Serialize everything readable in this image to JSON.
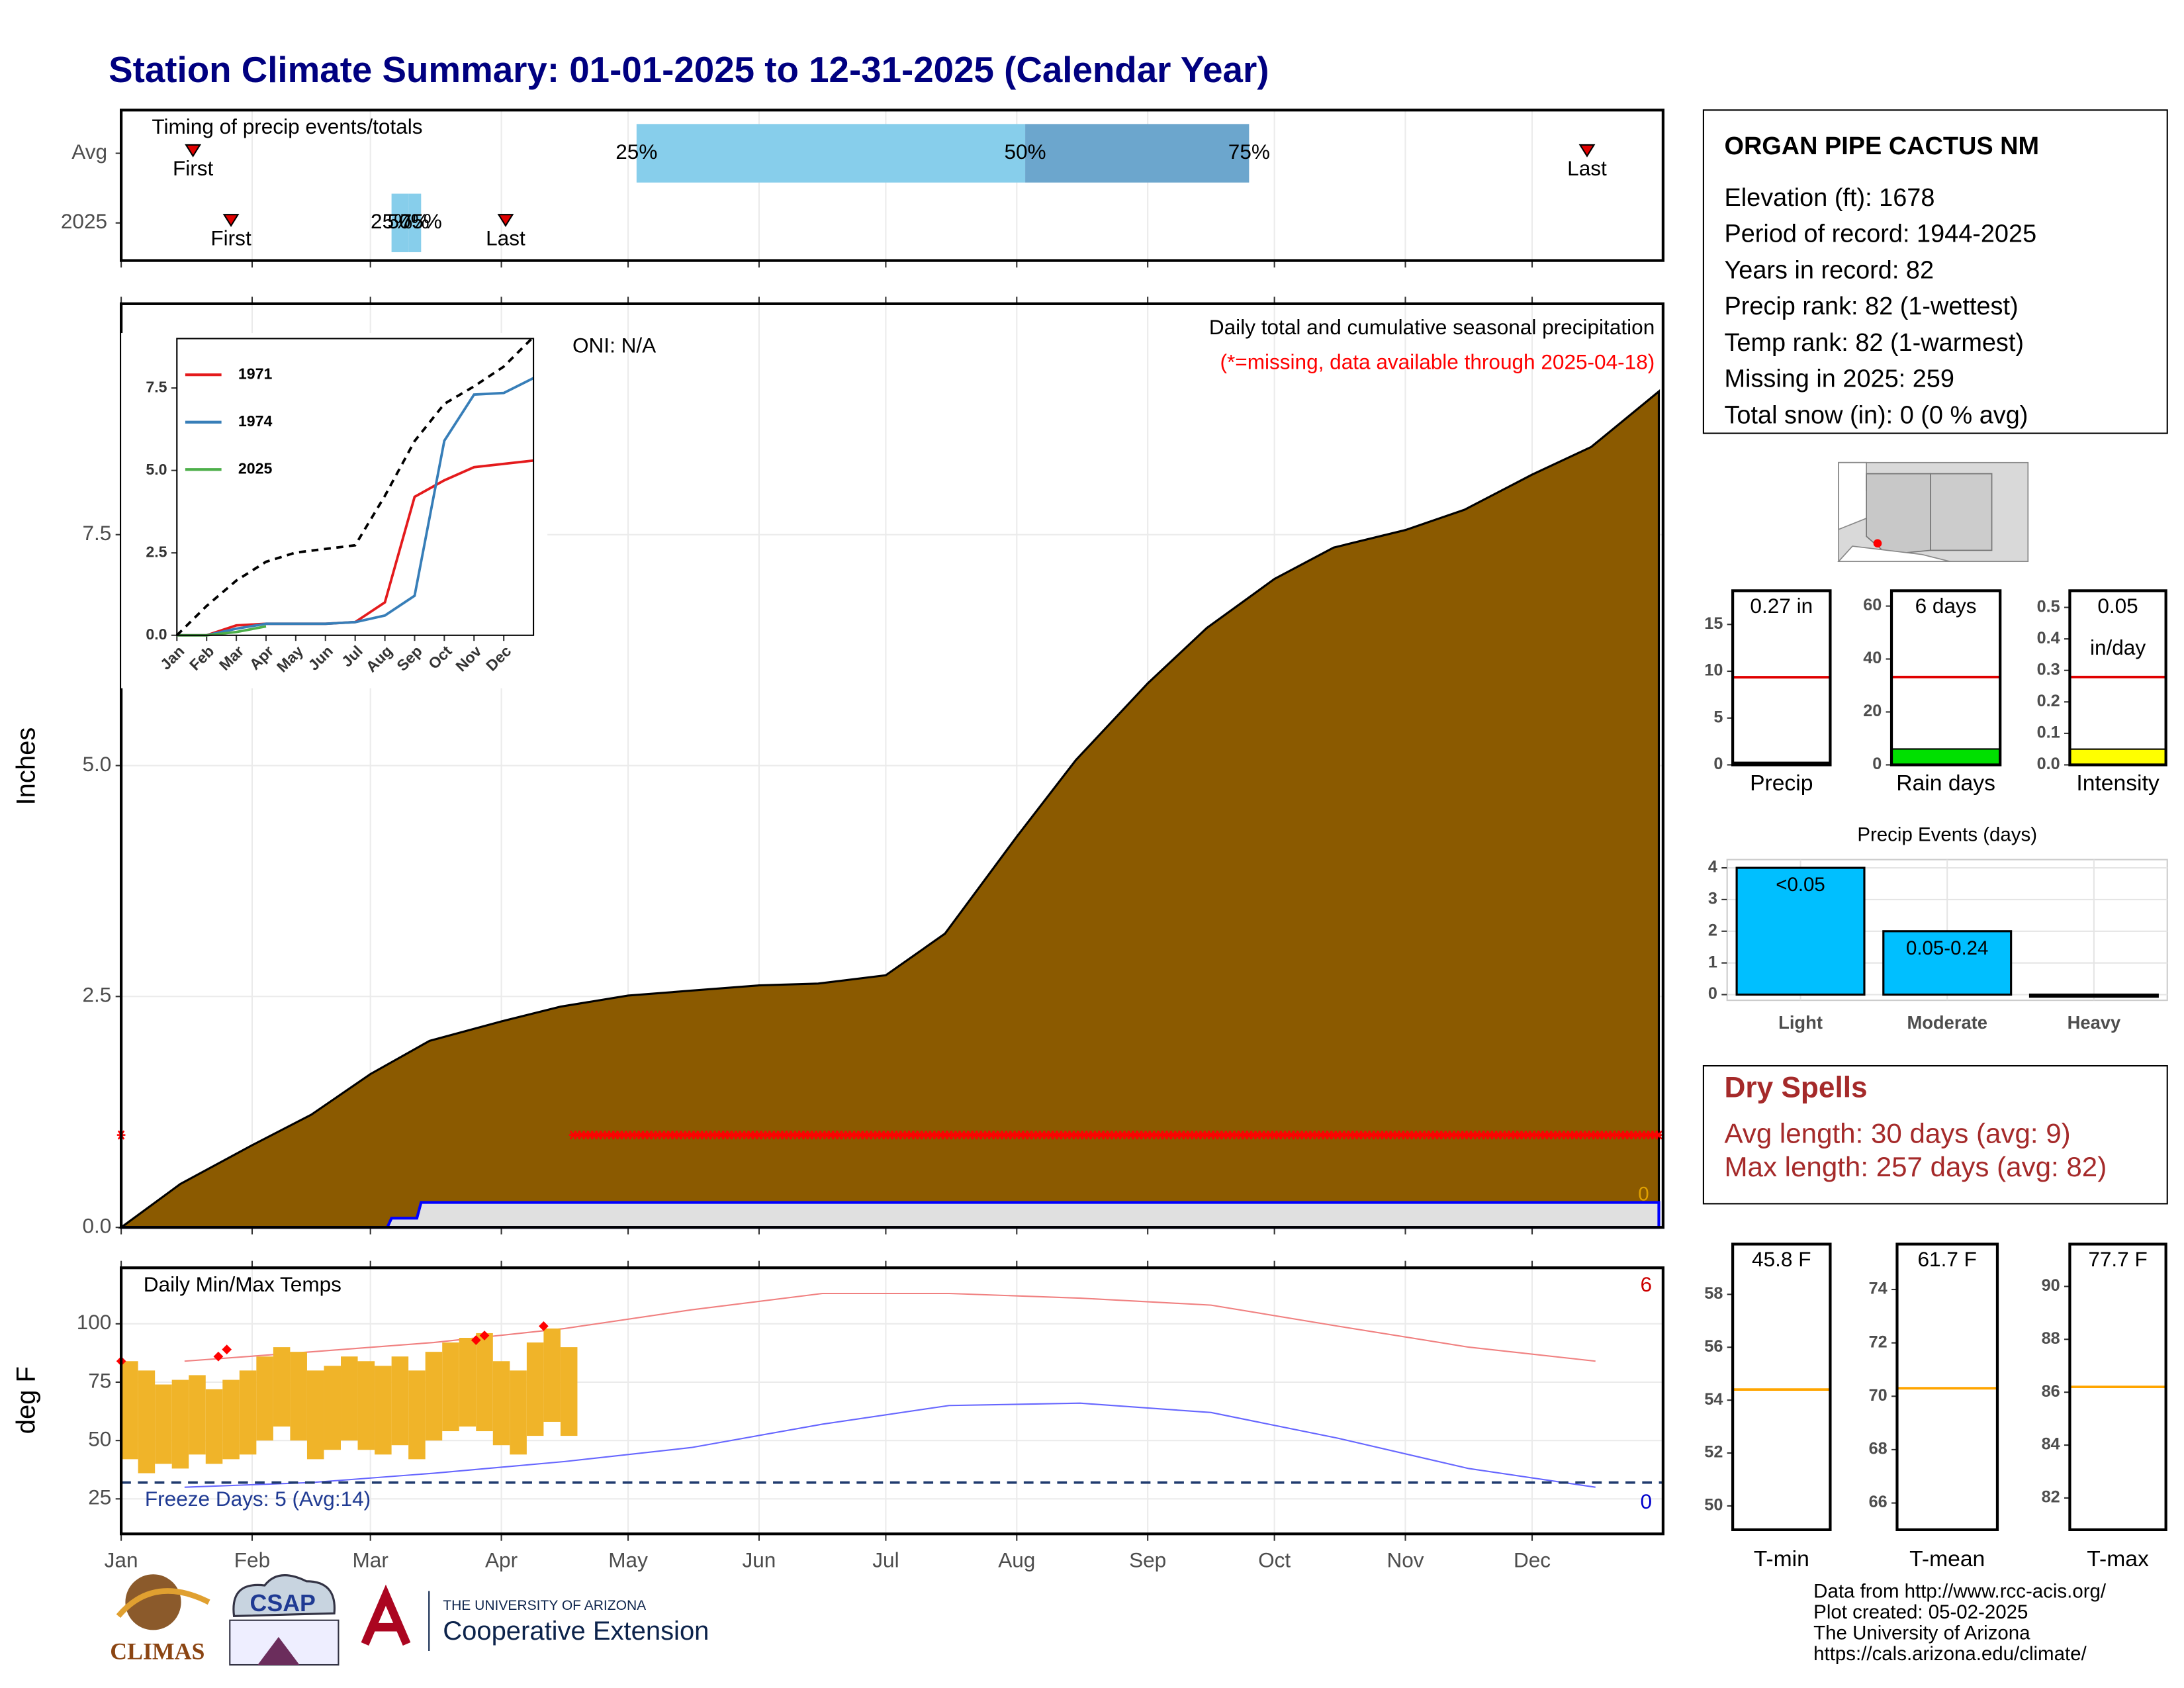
{
  "title": "Station Climate Summary: 01-01-2025 to 12-31-2025 (Calendar Year)",
  "chart_data": [
    {
      "type": "timing",
      "title": "Timing of precip events/totals",
      "categories": [
        "Avg",
        "2025"
      ],
      "xlim": [
        1,
        366
      ],
      "rows": [
        {
          "first": 18,
          "last": 348,
          "quantiles": [
            123,
            215,
            268
          ],
          "colors": [
            "#87ceeb",
            "#6ca6cd"
          ]
        },
        {
          "first": 27,
          "last": 92,
          "quantiles": [
            65,
            69,
            72
          ],
          "colors": [
            "#87ceeb",
            "#87ceeb"
          ]
        }
      ],
      "quantile_labels": [
        "25%",
        "50%",
        "75%"
      ],
      "first_label": "First",
      "last_label": "Last",
      "marker_color": "#e00000"
    },
    {
      "type": "area",
      "ylabel": "Inches",
      "subtitle": "Daily total and cumulative seasonal precipitation",
      "note": "(*=missing, data available through 2025-04-18)",
      "annotation": "ONI: N/A",
      "corner_label": "0",
      "xlim": [
        1,
        366
      ],
      "ylim": [
        0,
        10
      ],
      "yticks": [
        {
          "value": 0,
          "label": "0.0"
        },
        {
          "value": 2.5,
          "label": "2.5"
        },
        {
          "value": 5,
          "label": "5.0"
        },
        {
          "value": 7.5,
          "label": "7.5"
        }
      ],
      "grid": true,
      "series": [
        {
          "color": "#8b5a00",
          "x": [
            1,
            15,
            32,
            46,
            60,
            74,
            91,
            105,
            121,
            135,
            152,
            166,
            182,
            196,
            213,
            227,
            244,
            258,
            274,
            288,
            305,
            319,
            335,
            349,
            365
          ],
          "values": [
            0,
            0.47,
            0.89,
            1.22,
            1.66,
            2.02,
            2.23,
            2.39,
            2.51,
            2.56,
            2.62,
            2.64,
            2.73,
            3.18,
            4.23,
            5.06,
            5.89,
            6.49,
            7.02,
            7.36,
            7.55,
            7.77,
            8.15,
            8.45,
            9.05
          ]
        },
        {
          "color": "#0000ff",
          "fill": "#e0e0e0",
          "x": [
            1,
            64,
            65,
            71,
            72,
            365
          ],
          "values": [
            0,
            0,
            0.1,
            0.1,
            0.27,
            0.27
          ]
        }
      ],
      "missing_days": [
        [
          1,
          1
        ],
        [
          108,
          365
        ]
      ],
      "missing_y": 1,
      "missing_color": "#ff0000"
    },
    {
      "type": "line",
      "x": [
        1,
        2,
        3,
        4,
        5,
        6,
        7,
        8,
        9,
        10,
        11,
        12,
        13
      ],
      "xlim": [
        1,
        13
      ],
      "xticks": [
        {
          "value": 1,
          "label": "Jan"
        },
        {
          "value": 2,
          "label": "Feb"
        },
        {
          "value": 3,
          "label": "Mar"
        },
        {
          "value": 4,
          "label": "Apr"
        },
        {
          "value": 5,
          "label": "May"
        },
        {
          "value": 6,
          "label": "Jun"
        },
        {
          "value": 7,
          "label": "Jul"
        },
        {
          "value": 8,
          "label": "Aug"
        },
        {
          "value": 9,
          "label": "Sep"
        },
        {
          "value": 10,
          "label": "Oct"
        },
        {
          "value": 11,
          "label": "Nov"
        },
        {
          "value": 12,
          "label": "Dec"
        }
      ],
      "ylim": [
        0,
        9
      ],
      "yticks": [
        {
          "value": 0,
          "label": "0.0"
        },
        {
          "value": 2.5,
          "label": "2.5"
        },
        {
          "value": 5,
          "label": "5.0"
        },
        {
          "value": 7.5,
          "label": "7.5"
        }
      ],
      "series": [
        {
          "name": "1971",
          "color": "#e41a1c",
          "values": [
            0,
            0,
            0.3,
            0.35,
            0.35,
            0.35,
            0.4,
            1.0,
            4.2,
            4.7,
            5.1,
            5.2,
            5.3
          ]
        },
        {
          "name": "1974",
          "color": "#377eb8",
          "values": [
            0,
            0,
            0.2,
            0.35,
            0.35,
            0.35,
            0.4,
            0.6,
            1.2,
            5.9,
            7.3,
            7.35,
            7.8
          ]
        },
        {
          "name": "2025",
          "color": "#4daf4a",
          "values": [
            0,
            0,
            0.1,
            0.27,
            null,
            null,
            null,
            null,
            null,
            null,
            null,
            null,
            null
          ]
        },
        {
          "color": "#000000",
          "dash": true,
          "values": [
            0,
            0.89,
            1.66,
            2.23,
            2.51,
            2.62,
            2.73,
            4.23,
            5.89,
            7.02,
            7.55,
            8.15,
            9.05
          ]
        }
      ]
    },
    {
      "type": "temps",
      "title": "Daily Min/Max Temps",
      "ylabel": "deg F",
      "xlim": [
        1,
        366
      ],
      "xticks": [
        {
          "value": 1,
          "label": "Jan"
        },
        {
          "value": 32,
          "label": "Feb"
        },
        {
          "value": 60,
          "label": "Mar"
        },
        {
          "value": 91,
          "label": "Apr"
        },
        {
          "value": 121,
          "label": "May"
        },
        {
          "value": 152,
          "label": "Jun"
        },
        {
          "value": 182,
          "label": "Jul"
        },
        {
          "value": 213,
          "label": "Aug"
        },
        {
          "value": 244,
          "label": "Sep"
        },
        {
          "value": 274,
          "label": "Oct"
        },
        {
          "value": 305,
          "label": "Nov"
        },
        {
          "value": 335,
          "label": "Dec"
        }
      ],
      "ylim": [
        10,
        124
      ],
      "yticks": [
        25,
        50,
        75,
        100
      ],
      "grid": true,
      "avg_x": [
        16,
        46,
        75,
        106,
        136,
        167,
        197,
        228,
        259,
        289,
        320,
        350
      ],
      "avg_max": [
        84,
        88,
        92,
        98,
        106,
        113,
        113,
        111,
        108,
        99,
        90,
        84
      ],
      "avg_min": [
        30,
        32,
        36,
        41,
        47,
        57,
        65,
        66,
        62,
        51,
        38,
        30
      ],
      "avg_max_color": "#f08080",
      "avg_min_color": "#6666ff",
      "bar_x": [
        1,
        5,
        9,
        13,
        17,
        21,
        25,
        29,
        33,
        37,
        41,
        45,
        49,
        53,
        57,
        61,
        65,
        69,
        73,
        77,
        81,
        85,
        89,
        93,
        97,
        101,
        105
      ],
      "max": [
        84,
        80,
        74,
        76,
        78,
        72,
        76,
        80,
        86,
        90,
        88,
        80,
        82,
        86,
        84,
        82,
        86,
        80,
        88,
        92,
        94,
        96,
        84,
        80,
        92,
        98,
        90
      ],
      "min": [
        42,
        36,
        40,
        38,
        44,
        40,
        42,
        44,
        50,
        56,
        50,
        42,
        46,
        50,
        46,
        44,
        48,
        42,
        50,
        54,
        56,
        54,
        48,
        44,
        52,
        58,
        52
      ],
      "bar_color": "#f0b429",
      "record_x": [
        1,
        24,
        26,
        85,
        87,
        101
      ],
      "record_values": [
        84,
        86,
        89,
        93,
        95,
        99
      ],
      "record_color": "#ff0000",
      "freeze_line": 32,
      "freeze_label": "Freeze Days: 5 (Avg:14)",
      "high_count": 6,
      "low_count": 0
    },
    {
      "type": "summary_bar",
      "xlabel": "Precip",
      "ylim": [
        0,
        18.6
      ],
      "yticks": [
        0,
        5,
        10,
        15
      ],
      "values": [
        0.27
      ],
      "value_labels": [
        "0.27 in"
      ],
      "avg": 9.36,
      "avg_color": "#e00000",
      "color": "#000000"
    },
    {
      "type": "summary_bar",
      "xlabel": "Rain days",
      "ylim": [
        0,
        65.8
      ],
      "yticks": [
        0,
        20,
        40,
        60
      ],
      "values": [
        6
      ],
      "value_labels": [
        "6 days"
      ],
      "avg": 33.2,
      "avg_color": "#e00000",
      "color": "#00e000"
    },
    {
      "type": "summary_bar",
      "xlabel": "Intensity",
      "ylim": [
        0,
        0.553
      ],
      "yticks": [
        {
          "value": 0,
          "label": "0.0"
        },
        0.1,
        0.2,
        0.3,
        0.4,
        0.5
      ],
      "values": [
        0.05
      ],
      "unit_label": "in/day",
      "avg": 0.279,
      "avg_color": "#e00000",
      "color": "#ffff00"
    },
    {
      "type": "bar",
      "title": "Precip Events (days)",
      "categories": [
        "Light",
        "Moderate",
        "Heavy"
      ],
      "values": [
        4,
        2,
        0
      ],
      "ranges": [
        "<0.05",
        "0.05-0.24"
      ],
      "ylim": [
        -0.18,
        4.26
      ],
      "yticks": [
        0,
        1,
        2,
        3,
        4
      ],
      "color": "#00bfff",
      "grid": true
    },
    {
      "type": "summary_bar",
      "xlabel": "T-min",
      "ylim": [
        49.1,
        59.9
      ],
      "yticks": [
        50,
        52,
        54,
        56,
        58
      ],
      "values": [
        45.8
      ],
      "value_labels": [
        "45.8 F"
      ],
      "avg": 54.4,
      "avg_color": "#ffa500",
      "color": "#000000"
    },
    {
      "type": "summary_bar",
      "xlabel": "T-mean",
      "ylim": [
        65.0,
        75.7
      ],
      "yticks": [
        66,
        68,
        70,
        72,
        74
      ],
      "values": [
        61.7
      ],
      "value_labels": [
        "61.7 F"
      ],
      "avg": 70.3,
      "avg_color": "#ffa500",
      "color": "#000000"
    },
    {
      "type": "summary_bar",
      "xlabel": "T-max",
      "ylim": [
        80.8,
        91.6
      ],
      "yticks": [
        82,
        84,
        86,
        88,
        90
      ],
      "values": [
        77.7
      ],
      "value_labels": [
        "77.7 F"
      ],
      "avg": 86.2,
      "avg_color": "#ffa500",
      "color": "#000000"
    }
  ],
  "station": {
    "name": "ORGAN PIPE CACTUS NM",
    "lines": [
      "Elevation (ft): 1678",
      "Period of record: 1944-2025",
      "Years in record: 82",
      "Precip rank: 82 (1-wettest)",
      "Temp rank: 82 (1-warmest)",
      "Missing in 2025: 259",
      "Total snow (in): 0 (0 % avg)"
    ]
  },
  "dry_spells": {
    "title": "Dry Spells",
    "lines": [
      "Avg length: 30 days (avg: 9)",
      "Max length: 257 days (avg: 82)"
    ]
  },
  "footer": {
    "credits": [
      "Data from http://www.rcc-acis.org/",
      "Plot created: 05-02-2025",
      "The University of Arizona",
      "https://cals.arizona.edu/climate/"
    ],
    "logos": [
      "CLIMAS",
      "CSAP",
      "THE UNIVERSITY OF ARIZONA",
      "Cooperative Extension"
    ]
  }
}
